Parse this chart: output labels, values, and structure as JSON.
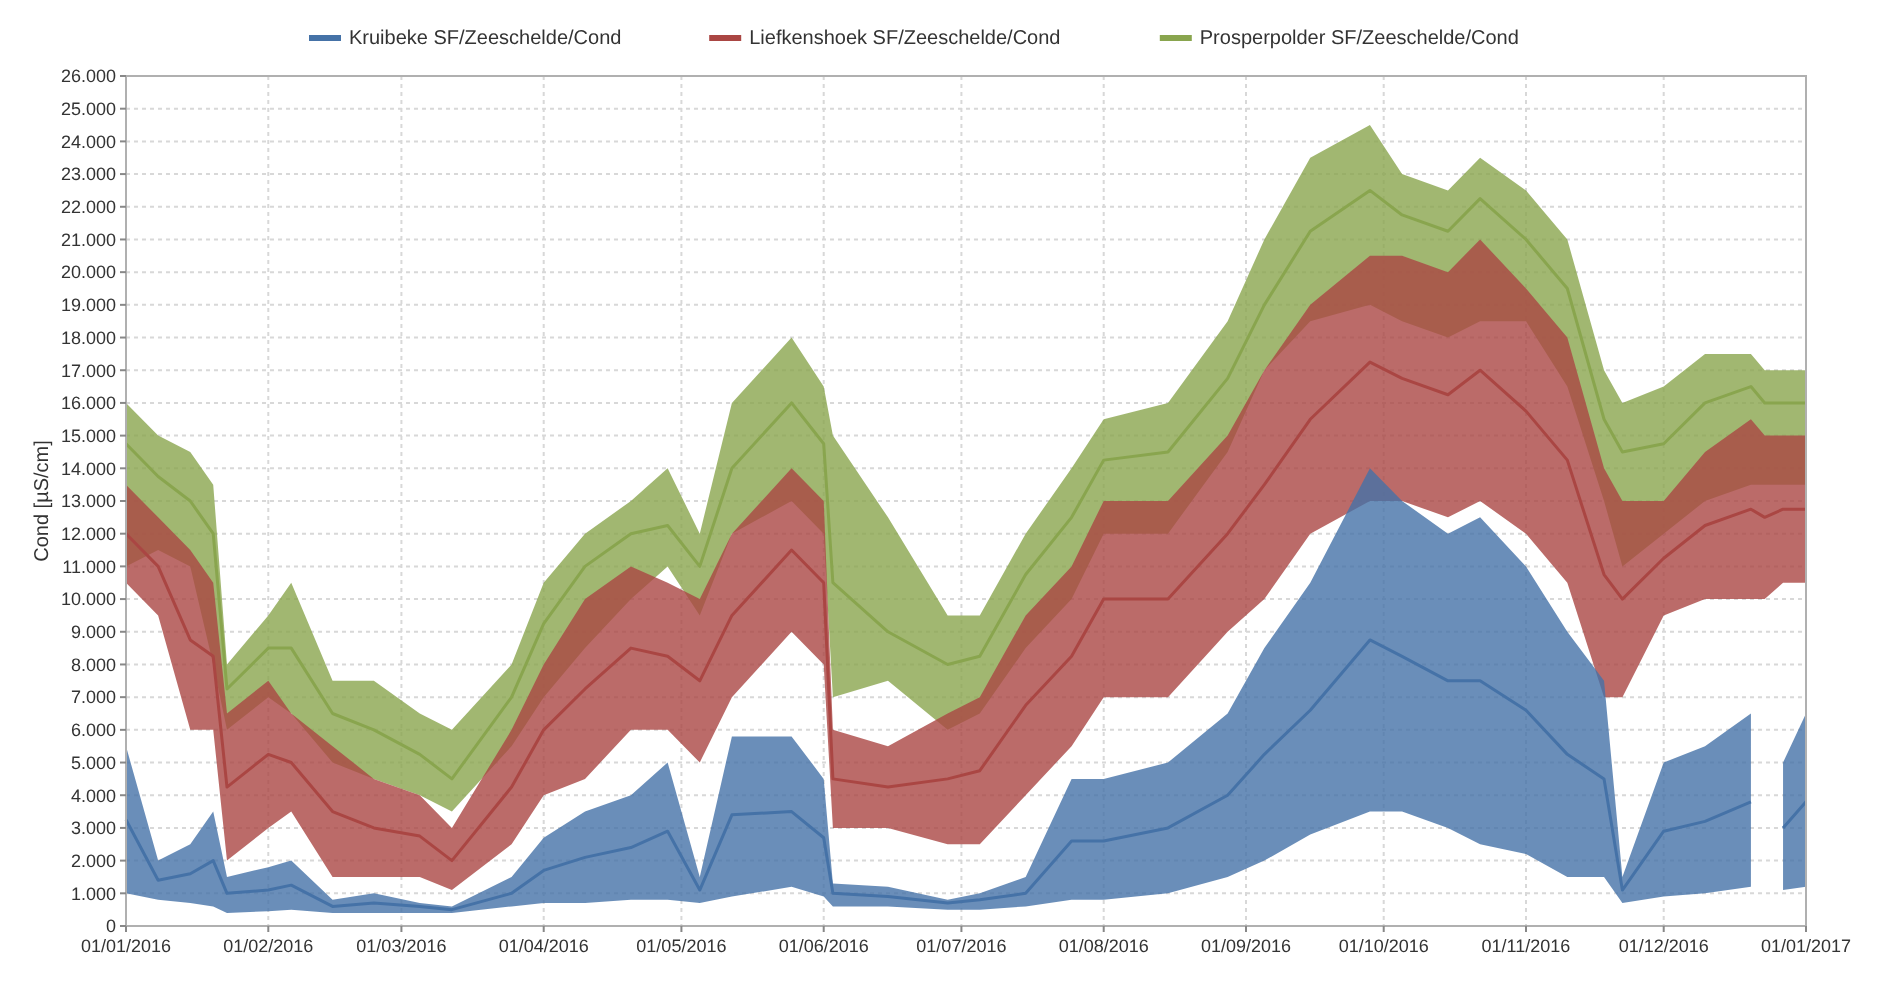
{
  "chart_data": {
    "type": "line",
    "ylabel": "Cond [µS/cm]",
    "legend": "top",
    "grid": true,
    "x": [
      "2016-01-01",
      "2016-01-08",
      "2016-01-15",
      "2016-01-20",
      "2016-01-23",
      "2016-02-01",
      "2016-02-06",
      "2016-02-15",
      "2016-02-24",
      "2016-03-05",
      "2016-03-12",
      "2016-03-25",
      "2016-04-01",
      "2016-04-10",
      "2016-04-20",
      "2016-04-28",
      "2016-05-05",
      "2016-05-12",
      "2016-05-25",
      "2016-06-01",
      "2016-06-03",
      "2016-06-15",
      "2016-06-28",
      "2016-07-05",
      "2016-07-15",
      "2016-07-25",
      "2016-08-01",
      "2016-08-15",
      "2016-08-28",
      "2016-09-05",
      "2016-09-15",
      "2016-09-28",
      "2016-10-05",
      "2016-10-15",
      "2016-10-22",
      "2016-11-01",
      "2016-11-10",
      "2016-11-18",
      "2016-11-22",
      "2016-12-01",
      "2016-12-10",
      "2016-12-20",
      "2016-12-23",
      "2016-12-27",
      "2017-01-01"
    ],
    "xlim": [
      "2016-01-01",
      "2017-01-01"
    ],
    "xticks": [
      {
        "value": "2016-01-01",
        "label": "01/01/2016"
      },
      {
        "value": "2016-02-01",
        "label": "01/02/2016"
      },
      {
        "value": "2016-03-01",
        "label": "01/03/2016"
      },
      {
        "value": "2016-04-01",
        "label": "01/04/2016"
      },
      {
        "value": "2016-05-01",
        "label": "01/05/2016"
      },
      {
        "value": "2016-06-01",
        "label": "01/06/2016"
      },
      {
        "value": "2016-07-01",
        "label": "01/07/2016"
      },
      {
        "value": "2016-08-01",
        "label": "01/08/2016"
      },
      {
        "value": "2016-09-01",
        "label": "01/09/2016"
      },
      {
        "value": "2016-10-01",
        "label": "01/10/2016"
      },
      {
        "value": "2016-11-01",
        "label": "01/11/2016"
      },
      {
        "value": "2016-12-01",
        "label": "01/12/2016"
      },
      {
        "value": "2017-01-01",
        "label": "01/01/2017"
      }
    ],
    "ylim": [
      0,
      26000
    ],
    "yticks": [
      0,
      {
        "value": 1000,
        "label": "1.000"
      },
      {
        "value": 2000,
        "label": "2.000"
      },
      {
        "value": 3000,
        "label": "3.000"
      },
      {
        "value": 4000,
        "label": "4.000"
      },
      {
        "value": 5000,
        "label": "5.000"
      },
      {
        "value": 6000,
        "label": "6.000"
      },
      {
        "value": 7000,
        "label": "7.000"
      },
      {
        "value": 8000,
        "label": "8.000"
      },
      {
        "value": 9000,
        "label": "9.000"
      },
      {
        "value": 10000,
        "label": "10.000"
      },
      {
        "value": 11000,
        "label": "11.000"
      },
      {
        "value": 12000,
        "label": "12.000"
      },
      {
        "value": 13000,
        "label": "13.000"
      },
      {
        "value": 14000,
        "label": "14.000"
      },
      {
        "value": 15000,
        "label": "15.000"
      },
      {
        "value": 16000,
        "label": "16.000"
      },
      {
        "value": 17000,
        "label": "17.000"
      },
      {
        "value": 18000,
        "label": "18.000"
      },
      {
        "value": 19000,
        "label": "19.000"
      },
      {
        "value": 20000,
        "label": "20.000"
      },
      {
        "value": 21000,
        "label": "21.000"
      },
      {
        "value": 22000,
        "label": "22.000"
      },
      {
        "value": 23000,
        "label": "23.000"
      },
      {
        "value": 24000,
        "label": "24.000"
      },
      {
        "value": 25000,
        "label": "25.000"
      },
      {
        "value": 26000,
        "label": "26.000"
      }
    ],
    "series": [
      {
        "name": "Prosperpolder SF/Zeeschelde/Cond",
        "color": "#89a54e",
        "values": [
          14750,
          13750,
          13000,
          12000,
          7250,
          8500,
          8500,
          6500,
          6000,
          5250,
          4500,
          7000,
          9250,
          11000,
          12000,
          12250,
          11000,
          14000,
          16000,
          14750,
          10500,
          9000,
          8000,
          8250,
          10750,
          12500,
          14250,
          14500,
          16750,
          19000,
          21250,
          22500,
          21750,
          21250,
          22250,
          21000,
          19500,
          15500,
          14500,
          14750,
          16000,
          16500,
          16000,
          16000,
          16000
        ],
        "upper": [
          16000,
          15000,
          14500,
          13500,
          8000,
          9500,
          10500,
          7500,
          7500,
          6500,
          6000,
          8000,
          10500,
          12000,
          13000,
          14000,
          12000,
          16000,
          18000,
          16500,
          15000,
          12500,
          9500,
          9500,
          12000,
          14000,
          15500,
          16000,
          18500,
          21000,
          23500,
          24500,
          23000,
          22500,
          23500,
          22500,
          21000,
          17000,
          16000,
          16500,
          17500,
          17500,
          17000,
          17000,
          17000
        ],
        "lower": [
          11000,
          11500,
          11000,
          8000,
          6000,
          7000,
          6500,
          5000,
          4500,
          4000,
          3500,
          5500,
          7000,
          8500,
          10000,
          11000,
          9500,
          12000,
          13000,
          12000,
          7000,
          7500,
          6000,
          6500,
          8500,
          10000,
          12000,
          12000,
          14500,
          17000,
          18500,
          19000,
          18500,
          18000,
          18500,
          18500,
          16500,
          13000,
          11000,
          12000,
          13000,
          13500,
          13500,
          13500,
          13500
        ]
      },
      {
        "name": "Liefkenshoek SF/Zeeschelde/Cond",
        "color": "#aa4643",
        "values": [
          12000,
          11000,
          8750,
          8250,
          4250,
          5250,
          5000,
          3500,
          3000,
          2750,
          2000,
          4250,
          6000,
          7250,
          8500,
          8250,
          7500,
          9500,
          11500,
          10500,
          4500,
          4250,
          4500,
          4750,
          6750,
          8250,
          10000,
          10000,
          12000,
          13500,
          15500,
          17250,
          16750,
          16250,
          17000,
          15750,
          14250,
          10750,
          10000,
          11250,
          12250,
          12750,
          12500,
          12750,
          12750
        ],
        "upper": [
          13500,
          12500,
          11500,
          10500,
          6500,
          7500,
          6500,
          5500,
          4500,
          4000,
          3000,
          6000,
          8000,
          10000,
          11000,
          10500,
          10000,
          12000,
          14000,
          13000,
          6000,
          5500,
          6500,
          7000,
          9500,
          11000,
          13000,
          13000,
          15000,
          17000,
          19000,
          20500,
          20500,
          20000,
          21000,
          19500,
          18000,
          14000,
          13000,
          13000,
          14500,
          15500,
          15000,
          15000,
          15000
        ],
        "lower": [
          10500,
          9500,
          6000,
          6000,
          2000,
          3000,
          3500,
          1500,
          1500,
          1500,
          1100,
          2500,
          4000,
          4500,
          6000,
          6000,
          5000,
          7000,
          9000,
          8000,
          3000,
          3000,
          2500,
          2500,
          4000,
          5500,
          7000,
          7000,
          9000,
          10000,
          12000,
          13000,
          13000,
          12500,
          13000,
          12000,
          10500,
          7000,
          7000,
          9500,
          10000,
          10000,
          10000,
          10500,
          10500
        ]
      },
      {
        "name": "Kruibeke SF/Zeeschelde/Cond",
        "color": "#4572a7",
        "values": [
          3250,
          1400,
          1600,
          2000,
          1000,
          1100,
          1250,
          600,
          700,
          600,
          500,
          1000,
          1700,
          2100,
          2400,
          2900,
          1100,
          3400,
          3500,
          2700,
          1000,
          900,
          700,
          800,
          1000,
          2600,
          2600,
          3000,
          4000,
          5250,
          6600,
          8750,
          8250,
          7500,
          7500,
          6600,
          5250,
          4500,
          1100,
          2900,
          3200,
          3800,
          null,
          3000,
          3800
        ],
        "upper": [
          5500,
          2000,
          2500,
          3500,
          1500,
          1800,
          2000,
          800,
          1000,
          700,
          600,
          1500,
          2700,
          3500,
          4000,
          5000,
          1500,
          5800,
          5800,
          4500,
          1300,
          1200,
          800,
          1000,
          1500,
          4500,
          4500,
          5000,
          6500,
          8500,
          10500,
          14000,
          13000,
          12000,
          12500,
          11000,
          9000,
          7500,
          1500,
          5000,
          5500,
          6500,
          null,
          5000,
          6500
        ],
        "lower": [
          1000,
          800,
          700,
          600,
          400,
          450,
          500,
          400,
          400,
          400,
          400,
          600,
          700,
          700,
          800,
          800,
          700,
          900,
          1200,
          900,
          600,
          600,
          500,
          500,
          600,
          800,
          800,
          1000,
          1500,
          2000,
          2800,
          3500,
          3500,
          3000,
          2500,
          2200,
          1500,
          1500,
          700,
          900,
          1000,
          1200,
          null,
          1100,
          1200
        ]
      }
    ]
  }
}
